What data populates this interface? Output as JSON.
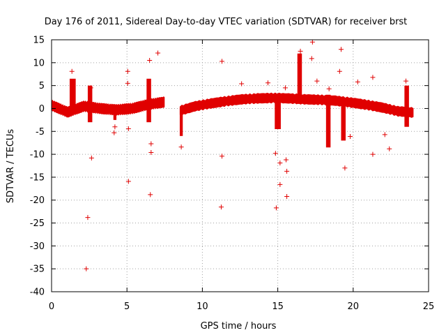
{
  "chart_data": {
    "type": "scatter",
    "title": "Day 176 of 2011, Sidereal Day-to-day VTEC variation (SDTVAR) for receiver brst",
    "xlabel": "GPS time / hours",
    "ylabel": "SDTVAR / TECUs",
    "xlim": [
      0,
      25
    ],
    "ylim": [
      -40,
      15
    ],
    "x_ticks": [
      0,
      5,
      10,
      15,
      20,
      25
    ],
    "y_ticks": [
      15,
      10,
      5,
      0,
      -5,
      -10,
      -15,
      -20,
      -25,
      -30,
      -35,
      -40
    ],
    "grid": true,
    "marker": "+",
    "color": "#e00000",
    "band_segments": [
      {
        "x": [
          0.0,
          7.5
        ],
        "center": [
          0.7,
          -0.8,
          0.5,
          0.0,
          -0.3,
          0.0,
          0.9,
          1.4
        ],
        "halfwidth": 1.3
      },
      {
        "x": [
          8.5,
          24.0
        ],
        "center": [
          -0.5,
          0.5,
          1.1,
          1.6,
          2.0,
          2.2,
          2.3,
          2.2,
          2.0,
          1.9,
          1.7,
          1.3,
          0.8,
          0.2,
          -0.6,
          -0.9
        ],
        "halfwidth": 1.2
      }
    ],
    "band_features": [
      {
        "x": [
          1.2,
          1.6
        ],
        "y": [
          -1,
          6.5
        ]
      },
      {
        "x": [
          2.4,
          2.7
        ],
        "y": [
          -3,
          5
        ]
      },
      {
        "x": [
          4.1,
          4.3
        ],
        "y": [
          -2.5,
          0
        ]
      },
      {
        "x": [
          6.3,
          6.6
        ],
        "y": [
          -3,
          6.5
        ]
      },
      {
        "x": [
          8.5,
          8.7
        ],
        "y": [
          -6,
          0
        ]
      },
      {
        "x": [
          14.8,
          15.2
        ],
        "y": [
          -4.5,
          2.5
        ]
      },
      {
        "x": [
          16.3,
          16.6
        ],
        "y": [
          1,
          12
        ]
      },
      {
        "x": [
          18.2,
          18.5
        ],
        "y": [
          -8.5,
          3
        ]
      },
      {
        "x": [
          19.2,
          19.5
        ],
        "y": [
          -7,
          2
        ]
      },
      {
        "x": [
          23.4,
          23.7
        ],
        "y": [
          -4,
          5
        ]
      }
    ],
    "outliers": [
      {
        "x": 1.35,
        "y": 8.1
      },
      {
        "x": 2.6,
        "y": 4.5
      },
      {
        "x": 2.65,
        "y": -10.8
      },
      {
        "x": 2.4,
        "y": -23.8
      },
      {
        "x": 2.3,
        "y": -35.0
      },
      {
        "x": 5.05,
        "y": 8.1
      },
      {
        "x": 5.05,
        "y": 5.5
      },
      {
        "x": 5.1,
        "y": -4.4
      },
      {
        "x": 5.1,
        "y": -15.9
      },
      {
        "x": 4.2,
        "y": -4.0
      },
      {
        "x": 4.15,
        "y": -5.3
      },
      {
        "x": 6.5,
        "y": 10.5
      },
      {
        "x": 7.05,
        "y": 12.1
      },
      {
        "x": 6.6,
        "y": -7.7
      },
      {
        "x": 6.6,
        "y": -9.6
      },
      {
        "x": 6.55,
        "y": -18.8
      },
      {
        "x": 8.6,
        "y": -8.4
      },
      {
        "x": 11.3,
        "y": 10.3
      },
      {
        "x": 11.3,
        "y": -10.4
      },
      {
        "x": 11.25,
        "y": -21.5
      },
      {
        "x": 14.35,
        "y": 5.6
      },
      {
        "x": 14.85,
        "y": -9.8
      },
      {
        "x": 15.15,
        "y": -11.9
      },
      {
        "x": 15.15,
        "y": -16.6
      },
      {
        "x": 14.9,
        "y": -21.7
      },
      {
        "x": 15.5,
        "y": 4.5
      },
      {
        "x": 15.55,
        "y": -11.2
      },
      {
        "x": 15.6,
        "y": -13.7
      },
      {
        "x": 15.6,
        "y": -19.2
      },
      {
        "x": 16.5,
        "y": 12.5
      },
      {
        "x": 17.3,
        "y": 14.5
      },
      {
        "x": 17.25,
        "y": 10.9
      },
      {
        "x": 18.4,
        "y": 4.3
      },
      {
        "x": 19.2,
        "y": 12.9
      },
      {
        "x": 19.1,
        "y": 8.1
      },
      {
        "x": 19.45,
        "y": -13.0
      },
      {
        "x": 20.3,
        "y": 5.8
      },
      {
        "x": 21.3,
        "y": 6.8
      },
      {
        "x": 21.3,
        "y": -10.0
      },
      {
        "x": 22.4,
        "y": -8.8
      },
      {
        "x": 22.1,
        "y": -5.7
      },
      {
        "x": 23.5,
        "y": 6.0
      },
      {
        "x": 19.8,
        "y": -6.1
      },
      {
        "x": 12.6,
        "y": 5.4
      },
      {
        "x": 17.6,
        "y": 6.0
      }
    ]
  }
}
